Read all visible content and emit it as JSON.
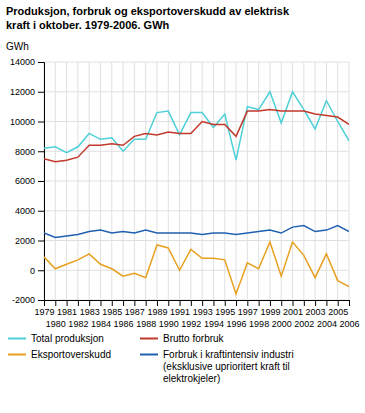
{
  "chart_data": {
    "type": "line",
    "title": "Produksjon, forbruk og eksportoverskudd av elektrisk\nkraft i oktober. 1979-2006. GWh",
    "y_label": "GWh",
    "x": [
      1979,
      1980,
      1981,
      1982,
      1983,
      1984,
      1985,
      1986,
      1987,
      1988,
      1989,
      1990,
      1991,
      1992,
      1993,
      1994,
      1995,
      1996,
      1997,
      1998,
      1999,
      2000,
      2001,
      2002,
      2003,
      2004,
      2005,
      2006
    ],
    "series": [
      {
        "name": "Total produksjon",
        "color": "#4dd0d8",
        "values": [
          8200,
          8300,
          7900,
          8300,
          9200,
          8800,
          8900,
          8000,
          8800,
          8800,
          10600,
          10700,
          9100,
          10600,
          10600,
          9600,
          10500,
          7400,
          11000,
          10800,
          12000,
          9900,
          12000,
          10800,
          9500,
          11400,
          10000,
          8700
        ]
      },
      {
        "name": "Brutto forbruk",
        "color": "#c0392b",
        "values": [
          7500,
          7300,
          7400,
          7600,
          8400,
          8400,
          8500,
          8400,
          9000,
          9200,
          9100,
          9300,
          9200,
          9200,
          10000,
          9800,
          9800,
          9000,
          10700,
          10700,
          10800,
          10700,
          10700,
          10700,
          10500,
          10400,
          10300,
          9800
        ]
      },
      {
        "name": "Eksportoverskudd",
        "color": "#e8a020",
        "values": [
          900,
          100,
          400,
          700,
          1100,
          400,
          100,
          -400,
          -200,
          -500,
          1700,
          1500,
          0,
          1400,
          800,
          800,
          700,
          -1600,
          500,
          100,
          1900,
          -400,
          1900,
          1000,
          -500,
          1100,
          -700,
          -1100
        ]
      },
      {
        "name": "Forbruk i kraftintensiv industri\n(eksklusive uprioritert kraft til\nelektrokjeler)",
        "color": "#2060b0",
        "values": [
          2500,
          2200,
          2300,
          2400,
          2600,
          2700,
          2500,
          2600,
          2500,
          2700,
          2500,
          2500,
          2500,
          2500,
          2400,
          2500,
          2500,
          2400,
          2500,
          2600,
          2700,
          2500,
          2900,
          3000,
          2600,
          2700,
          3000,
          2600
        ]
      }
    ],
    "xlim": [
      1979,
      2006
    ],
    "xticks": [
      1979,
      1980,
      1981,
      1982,
      1983,
      1984,
      1985,
      1986,
      1987,
      1988,
      1989,
      1990,
      1991,
      1992,
      1993,
      1994,
      1995,
      1996,
      1997,
      1998,
      1999,
      2000,
      2001,
      2002,
      2003,
      2004,
      2005,
      2006
    ],
    "ylim": [
      -2000,
      14000
    ],
    "yticks": [
      -2000,
      0,
      2000,
      4000,
      6000,
      8000,
      10000,
      12000,
      14000
    ],
    "grid": true
  }
}
